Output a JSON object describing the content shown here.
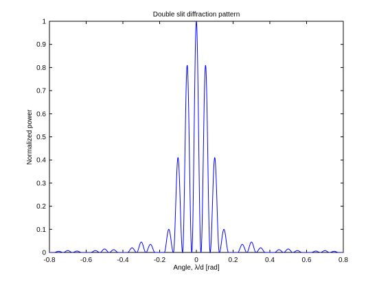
{
  "chart_data": {
    "type": "line",
    "title": "Double slit diffraction pattern",
    "xlabel": "Angle, λ/d [rad]",
    "ylabel": "Normalized power",
    "xlim": [
      -0.8,
      0.8
    ],
    "ylim": [
      0,
      1
    ],
    "xticks": [
      -0.8,
      -0.6,
      -0.4,
      -0.2,
      0,
      0.2,
      0.4,
      0.6,
      0.8
    ],
    "xtick_labels": [
      "-0.8",
      "-0.6",
      "-0.4",
      "-0.2",
      "0",
      "0.2",
      "0.4",
      "0.6",
      "0.8"
    ],
    "yticks": [
      0,
      0.1,
      0.2,
      0.3,
      0.4,
      0.5,
      0.6,
      0.7,
      0.8,
      0.9,
      1
    ],
    "ytick_labels": [
      "0",
      "0.1",
      "0.2",
      "0.3",
      "0.4",
      "0.5",
      "0.6",
      "0.7",
      "0.8",
      "0.9",
      "1"
    ],
    "grid": false,
    "legend": "none",
    "series": [
      {
        "color": "#0000ff",
        "peaks": [
          {
            "x": 0,
            "y": 1.0
          },
          {
            "x": -0.05,
            "y": 0.81
          },
          {
            "x": 0.05,
            "y": 0.81
          },
          {
            "x": -0.1,
            "y": 0.41
          },
          {
            "x": 0.1,
            "y": 0.41
          },
          {
            "x": -0.15,
            "y": 0.1
          },
          {
            "x": 0.15,
            "y": 0.1
          },
          {
            "x": -0.25,
            "y": 0.035
          },
          {
            "x": 0.25,
            "y": 0.035
          },
          {
            "x": -0.3,
            "y": 0.045
          },
          {
            "x": 0.3,
            "y": 0.045
          },
          {
            "x": -0.35,
            "y": 0.02
          },
          {
            "x": 0.35,
            "y": 0.02
          },
          {
            "x": -0.45,
            "y": 0.012
          },
          {
            "x": 0.45,
            "y": 0.012
          },
          {
            "x": -0.5,
            "y": 0.015
          },
          {
            "x": 0.5,
            "y": 0.015
          },
          {
            "x": -0.55,
            "y": 0.008
          },
          {
            "x": 0.55,
            "y": 0.008
          },
          {
            "x": -0.65,
            "y": 0.006
          },
          {
            "x": 0.65,
            "y": 0.006
          },
          {
            "x": -0.7,
            "y": 0.008
          },
          {
            "x": 0.7,
            "y": 0.008
          },
          {
            "x": -0.75,
            "y": 0.005
          },
          {
            "x": 0.75,
            "y": 0.005
          }
        ]
      }
    ]
  }
}
